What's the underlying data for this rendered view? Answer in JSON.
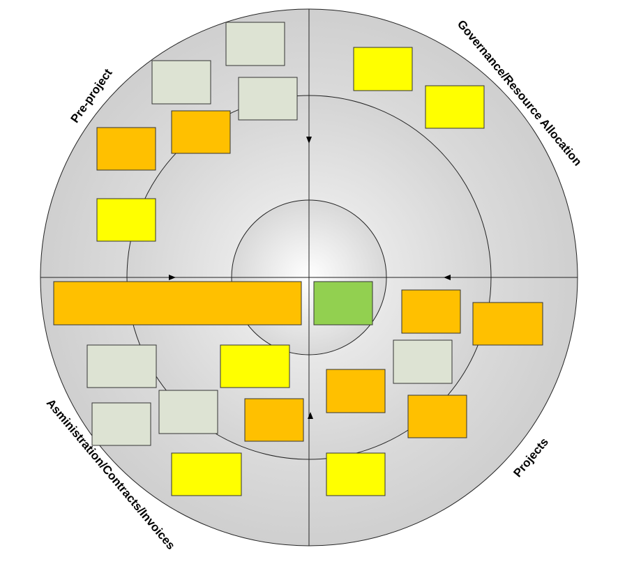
{
  "quadrants": [
    {
      "label": "Pre-project"
    },
    {
      "label": "Governance/Resource Allocation"
    },
    {
      "label": "Projects"
    },
    {
      "label": "Asministration/Contracts/Invoices"
    }
  ]
}
